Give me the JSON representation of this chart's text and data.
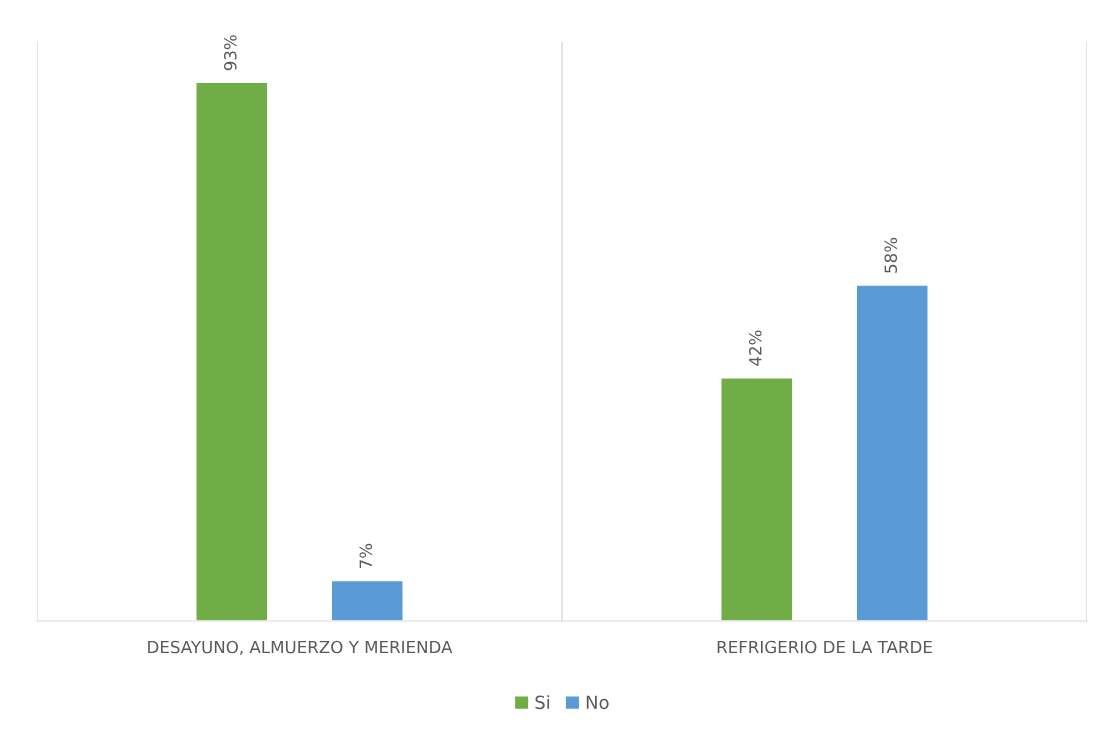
{
  "chart_data": {
    "type": "bar",
    "categories": [
      "DESAYUNO, ALMUERZO Y MERIENDA",
      "REFRIGERIO DE LA TARDE"
    ],
    "series": [
      {
        "name": "Si",
        "color": "#70ad47",
        "values": [
          93,
          42
        ],
        "value_labels": [
          "93%",
          "42%"
        ]
      },
      {
        "name": "No",
        "color": "#5b9bd5",
        "values": [
          7,
          58
        ],
        "value_labels": [
          "7%",
          "58%"
        ]
      }
    ],
    "grid": "x",
    "legend": "bottom"
  }
}
